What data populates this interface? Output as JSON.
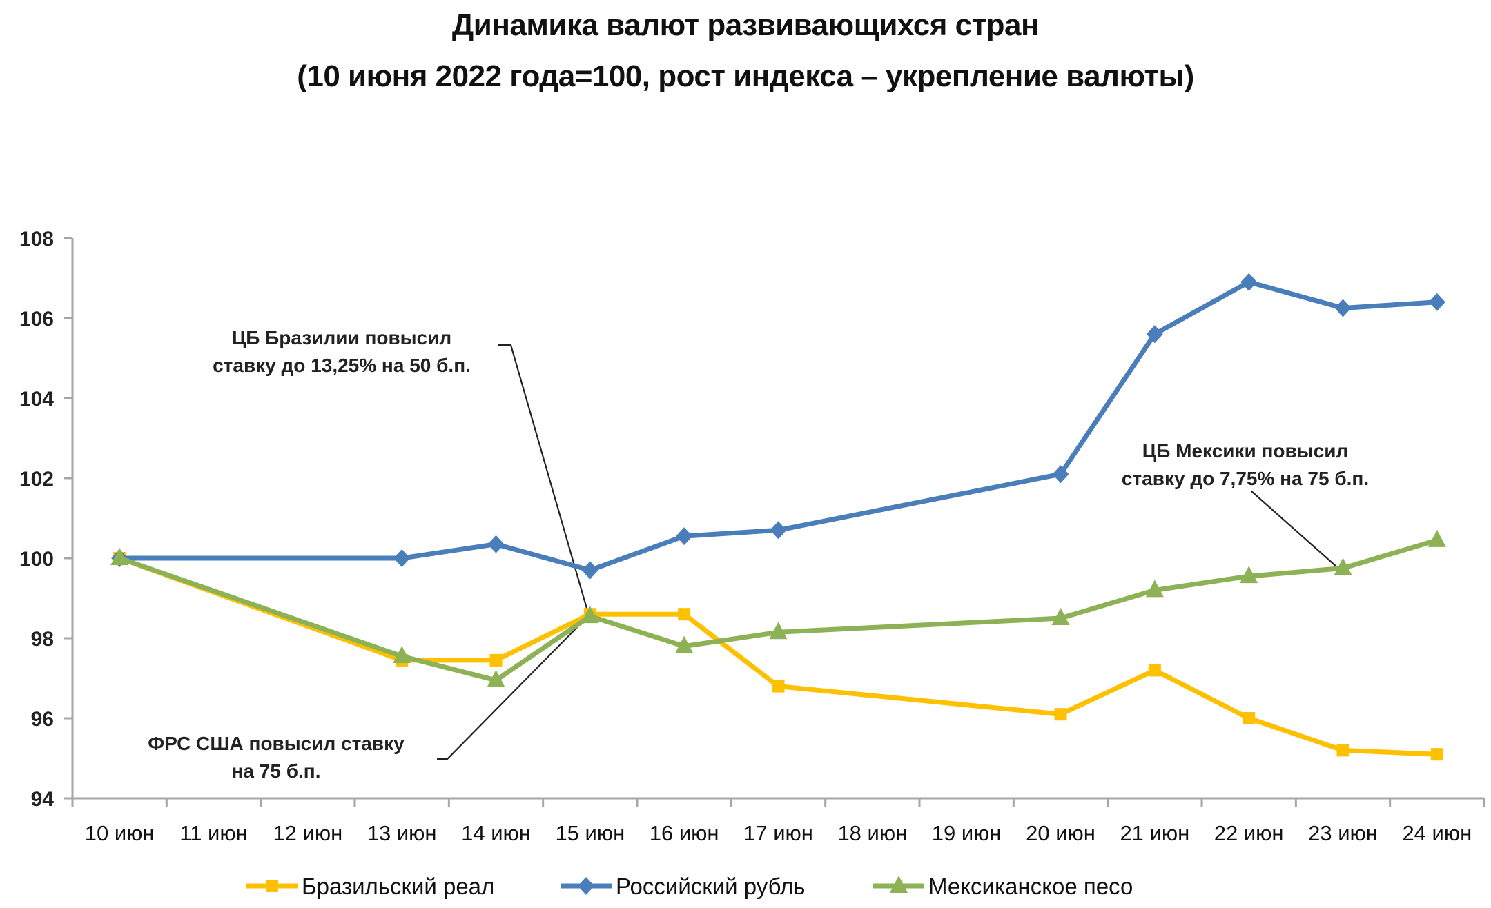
{
  "chart_data": {
    "type": "line",
    "title": "Динамика валют развивающихся стран",
    "subtitle": "(10 июня 2022 года=100, рост индекса – укрепление валюты)",
    "xlabel": "",
    "ylabel": "",
    "ylim": [
      94,
      108
    ],
    "yticks": [
      94,
      96,
      98,
      100,
      102,
      104,
      106,
      108
    ],
    "grid": false,
    "legend_position": "bottom",
    "categories": [
      "10 июн",
      "11 июн",
      "12 июн",
      "13 июн",
      "14 июн",
      "15 июн",
      "16 июн",
      "17 июн",
      "18 июн",
      "19 июн",
      "20 июн",
      "21 июн",
      "22 июн",
      "23 июн",
      "24 июн"
    ],
    "series": [
      {
        "name": "Бразильский реал",
        "color": "#FFC000",
        "marker": "square",
        "values": [
          100.0,
          null,
          null,
          97.45,
          97.45,
          98.6,
          98.6,
          96.8,
          null,
          null,
          96.1,
          97.2,
          96.0,
          95.2,
          95.1
        ]
      },
      {
        "name": "Российский рубль",
        "color": "#4A7EBB",
        "marker": "diamond",
        "values": [
          100.0,
          null,
          null,
          100.0,
          100.35,
          99.7,
          100.55,
          100.7,
          null,
          null,
          102.1,
          105.6,
          106.9,
          106.25,
          106.4
        ]
      },
      {
        "name": "Мексиканское песо",
        "color": "#8DB255",
        "marker": "triangle",
        "values": [
          100.0,
          null,
          null,
          97.55,
          96.95,
          98.55,
          97.8,
          98.15,
          null,
          null,
          98.5,
          99.2,
          99.55,
          99.75,
          100.45
        ]
      }
    ],
    "annotations": [
      {
        "lines": [
          "ЦБ Бразилии повысил",
          "ставку до 13,25% на 50 б.п."
        ],
        "points_to": "15 июн"
      },
      {
        "lines": [
          "ФРС США повысил ставку",
          "на 75 б.п."
        ],
        "points_to": "15 июн"
      },
      {
        "lines": [
          "ЦБ Мексики повысил",
          "ставку до 7,75% на 75 б.п."
        ],
        "points_to": "23 июн"
      }
    ]
  },
  "header": {
    "title": "Динамика валют развивающихся стран",
    "subtitle": "(10 июня 2022 года=100, рост индекса – укрепление валюты)"
  },
  "annotations": {
    "brazil_line1": "ЦБ Бразилии повысил",
    "brazil_line2": "ставку до 13,25% на 50 б.п.",
    "fed_line1": "ФРС США повысил ставку",
    "fed_line2": "на 75 б.п.",
    "mexico_line1": "ЦБ Мексики повысил",
    "mexico_line2": "ставку до 7,75% на 75 б.п."
  },
  "legend": [
    {
      "label": "Бразильский реал",
      "color": "#FFC000"
    },
    {
      "label": "Российский рубль",
      "color": "#4A7EBB"
    },
    {
      "label": "Мексиканское песо",
      "color": "#8DB255"
    }
  ],
  "colors": {
    "axis": "#A6A6A6",
    "callout_line": "#222222"
  }
}
